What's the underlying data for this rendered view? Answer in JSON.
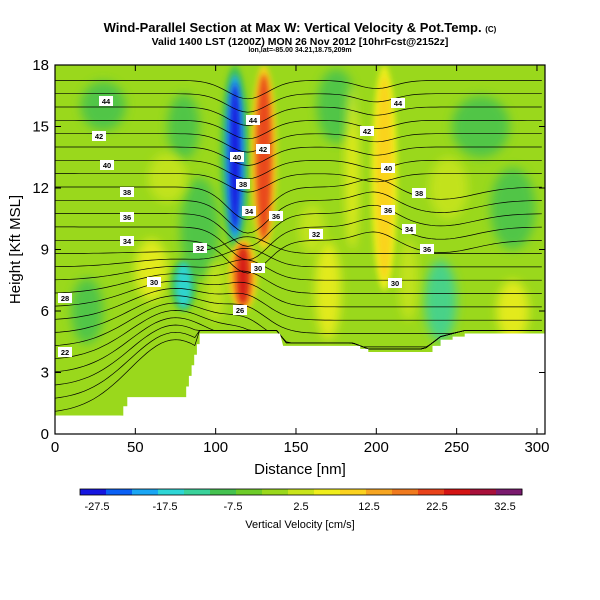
{
  "chart_data": {
    "type": "heatmap",
    "title": "Wind-Parallel Section at Max W: Vertical Velocity & Pot.Temp.",
    "title_mark": "(C)",
    "subtitle": "Valid 1400 LST (1200Z) MON 26 Nov 2012 [10hrFcst@2152z]",
    "sub_subtitle": "lon,lat=-85.00 34.21,18.75,209m",
    "xlabel": "Distance [nm]",
    "ylabel": "Height [Kft MSL]",
    "xlim": [
      0,
      305
    ],
    "ylim": [
      0,
      18
    ],
    "x_ticks": [
      0,
      50,
      100,
      150,
      200,
      250,
      300
    ],
    "y_ticks": [
      0,
      3,
      6,
      9,
      12,
      15,
      18
    ],
    "colorbar": {
      "label": "Vertical Velocity [cm/s]",
      "range": [
        -30,
        35
      ],
      "tick_values": [
        -27.5,
        -17.5,
        -7.5,
        2.5,
        12.5,
        22.5,
        32.5
      ],
      "tick_labels": [
        "-27.5",
        "-17.5",
        "-7.5",
        "2.5",
        "12.5",
        "22.5",
        "32.5"
      ],
      "colors": [
        "#1616e0",
        "#0a60f5",
        "#1aa6f4",
        "#2ed6d6",
        "#3ad29b",
        "#45c250",
        "#6dcc29",
        "#9ad81c",
        "#c9e41a",
        "#f0ee1c",
        "#fbd21f",
        "#f6a521",
        "#f07a1e",
        "#e9421a",
        "#d41414",
        "#a8103a",
        "#7a1a6e"
      ]
    },
    "theta_contour_labels": [
      "44",
      "44",
      "44",
      "42",
      "42",
      "42",
      "40",
      "40",
      "40",
      "38",
      "38",
      "38",
      "36",
      "36",
      "36",
      "36",
      "34",
      "34",
      "34",
      "32",
      "32",
      "30",
      "30",
      "30",
      "28",
      "26",
      "22"
    ],
    "vertical_velocity_features": [
      {
        "name": "downdraft",
        "x": 112,
        "y_range": [
          9,
          18
        ],
        "w": -30
      },
      {
        "name": "updraft",
        "x": 130,
        "y_range": [
          9,
          18
        ],
        "w": 20
      },
      {
        "name": "updraft-core",
        "x": 117,
        "y_range": [
          6,
          9.5
        ],
        "w": 25
      },
      {
        "name": "updraft",
        "x": 205,
        "y_range": [
          7,
          18
        ],
        "w": 10
      },
      {
        "name": "weak-downdraft",
        "x": 80,
        "y_range": [
          6,
          8.5
        ],
        "w": -15
      }
    ],
    "terrain_kft": [
      [
        0,
        0.9
      ],
      [
        40,
        0.9
      ],
      [
        45,
        1.8
      ],
      [
        80,
        1.8
      ],
      [
        90,
        4.9
      ],
      [
        140,
        4.9
      ],
      [
        142,
        4.3
      ],
      [
        185,
        4.3
      ],
      [
        195,
        4.0
      ],
      [
        230,
        4.0
      ],
      [
        240,
        4.6
      ],
      [
        255,
        4.9
      ],
      [
        305,
        4.9
      ]
    ]
  }
}
